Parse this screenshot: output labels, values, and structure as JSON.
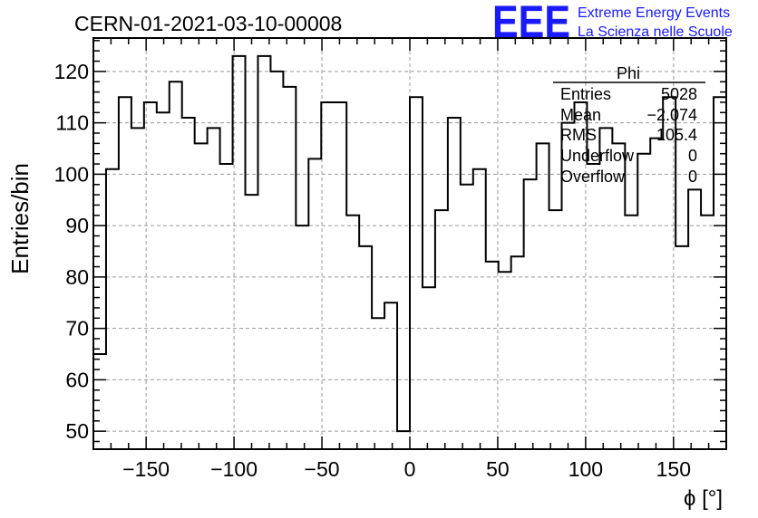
{
  "title": "CERN-01-2021-03-10-00008",
  "logo": {
    "text": "EEE",
    "line1": "Extreme Energy Events",
    "line2": "La Scienza nelle Scuole",
    "color": "#1a1aff"
  },
  "stats": {
    "name": "Phi",
    "rows": [
      {
        "label": "Entries",
        "value": "5028"
      },
      {
        "label": "Mean",
        "value": "−2.074"
      },
      {
        "label": "RMS",
        "value": "105.4"
      },
      {
        "label": "Underflow",
        "value": "0"
      },
      {
        "label": "Overflow",
        "value": "0"
      }
    ]
  },
  "chart_data": {
    "type": "histogram",
    "xlabel": "ϕ [°]",
    "ylabel": "Entries/bin",
    "xlim": [
      -180,
      180
    ],
    "ylim": [
      46.5,
      126.5
    ],
    "bin_width": 7.2,
    "bin_low_edges": [
      -180,
      -172.8,
      -165.6,
      -158.4,
      -151.2,
      -144,
      -136.8,
      -129.6,
      -122.4,
      -115.2,
      -108,
      -100.8,
      -93.6,
      -86.4,
      -79.2,
      -72,
      -64.8,
      -57.6,
      -50.4,
      -43.2,
      -36,
      -28.8,
      -21.6,
      -14.4,
      -7.2,
      0,
      7.2,
      14.4,
      21.6,
      28.8,
      36,
      43.2,
      50.4,
      57.6,
      64.8,
      72,
      79.2,
      86.4,
      93.6,
      100.8,
      108,
      115.2,
      122.4,
      129.6,
      136.8,
      144,
      151.2,
      158.4,
      165.6,
      172.8
    ],
    "values": [
      65,
      101,
      115,
      109,
      114,
      112,
      118,
      111,
      106,
      109,
      102,
      123,
      96,
      123,
      120,
      117,
      90,
      103,
      114,
      114,
      92,
      86,
      72,
      75,
      50,
      115,
      78,
      93,
      111,
      98,
      101,
      83,
      81,
      84,
      99,
      106,
      93,
      110,
      114,
      102,
      109,
      106,
      92,
      104,
      107,
      115,
      86,
      97,
      92,
      115
    ],
    "xticks": [
      -150,
      -100,
      -50,
      0,
      50,
      100,
      150
    ],
    "xtick_labels": [
      "−150",
      "−100",
      "−50",
      "0",
      "50",
      "100",
      "150"
    ],
    "yticks": [
      50,
      60,
      70,
      80,
      90,
      100,
      110,
      120
    ],
    "ytick_labels": [
      "50",
      "60",
      "70",
      "80",
      "90",
      "100",
      "110",
      "120"
    ],
    "grid": true,
    "legend": "top-right"
  }
}
